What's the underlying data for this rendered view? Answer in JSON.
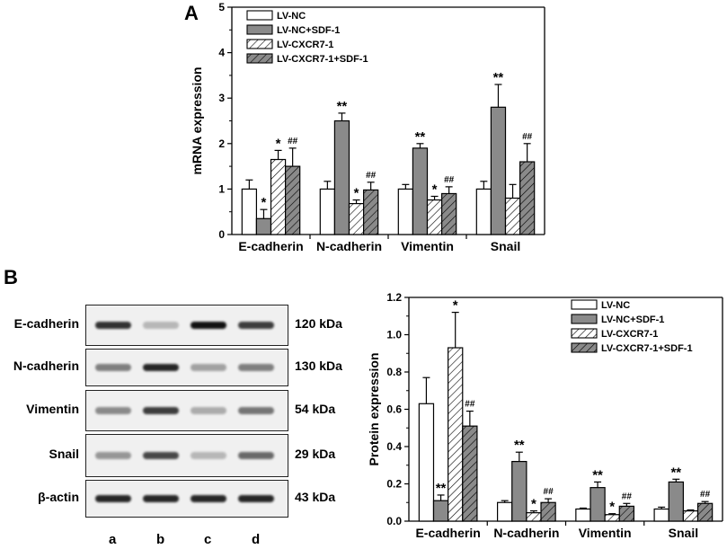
{
  "panel_a": {
    "letter": "A"
  },
  "panel_b": {
    "letter": "B"
  },
  "colors": {
    "white": "#ffffff",
    "gray": "#8a8a8a",
    "stroke": "#000000"
  },
  "chart_data": [
    {
      "type": "bar",
      "ylabel": "mRNA expression",
      "xlabel": "",
      "ylim": [
        0,
        5
      ],
      "yticks": [
        0,
        1,
        2,
        3,
        4,
        5
      ],
      "legend_position": "top-left",
      "categories": [
        "E-cadherin",
        "N-cadherin",
        "Vimentin",
        "Snail"
      ],
      "series": [
        {
          "name": "LV-NC",
          "fill": "white",
          "values": [
            1.0,
            1.0,
            1.0,
            1.0
          ],
          "errors": [
            0.2,
            0.17,
            0.1,
            0.17
          ],
          "annotations": [
            "",
            "",
            "",
            ""
          ]
        },
        {
          "name": "LV-NC+SDF-1",
          "fill": "gray",
          "values": [
            0.35,
            2.5,
            1.9,
            2.8
          ],
          "errors": [
            0.2,
            0.17,
            0.1,
            0.5
          ],
          "annotations": [
            "*",
            "**",
            "**",
            "**"
          ]
        },
        {
          "name": "LV-CXCR7-1",
          "fill": "hatch-white",
          "values": [
            1.65,
            0.68,
            0.76,
            0.8
          ],
          "errors": [
            0.2,
            0.08,
            0.08,
            0.3
          ],
          "annotations": [
            "*",
            "*",
            "*",
            ""
          ]
        },
        {
          "name": "LV-CXCR7-1+SDF-1",
          "fill": "hatch-gray",
          "values": [
            1.5,
            0.98,
            0.9,
            1.6
          ],
          "errors": [
            0.4,
            0.17,
            0.15,
            0.4
          ],
          "annotations": [
            "##",
            "##",
            "##",
            "##"
          ]
        }
      ]
    },
    {
      "type": "bar",
      "ylabel": "Protein expression",
      "xlabel": "",
      "ylim": [
        0,
        1.2
      ],
      "yticks": [
        0.0,
        0.2,
        0.4,
        0.6,
        0.8,
        1.0,
        1.2
      ],
      "legend_position": "top-right",
      "categories": [
        "E-cadherin",
        "N-cadherin",
        "Vimentin",
        "Snail"
      ],
      "series": [
        {
          "name": "LV-NC",
          "fill": "white",
          "values": [
            0.63,
            0.1,
            0.065,
            0.065
          ],
          "errors": [
            0.14,
            0.01,
            0.005,
            0.01
          ],
          "annotations": [
            "",
            "",
            "",
            ""
          ]
        },
        {
          "name": "LV-NC+SDF-1",
          "fill": "gray",
          "values": [
            0.11,
            0.32,
            0.18,
            0.21
          ],
          "errors": [
            0.03,
            0.05,
            0.03,
            0.015
          ],
          "annotations": [
            "**",
            "**",
            "**",
            "**"
          ]
        },
        {
          "name": "LV-CXCR7-1",
          "fill": "hatch-white",
          "values": [
            0.93,
            0.045,
            0.035,
            0.055
          ],
          "errors": [
            0.19,
            0.01,
            0.005,
            0.005
          ],
          "annotations": [
            "*",
            "*",
            "*",
            ""
          ]
        },
        {
          "name": "LV-CXCR7-1+SDF-1",
          "fill": "hatch-gray",
          "values": [
            0.51,
            0.1,
            0.08,
            0.095
          ],
          "errors": [
            0.08,
            0.02,
            0.015,
            0.01
          ],
          "annotations": [
            "##",
            "##",
            "##",
            "##"
          ]
        }
      ]
    }
  ],
  "western_blot": {
    "rows": [
      {
        "label": "E-cadherin",
        "kda": "120 kDa",
        "bands": [
          0.85,
          0.25,
          1.0,
          0.8
        ]
      },
      {
        "label": "N-cadherin",
        "kda": "130 kDa",
        "bands": [
          0.5,
          0.9,
          0.35,
          0.5
        ]
      },
      {
        "label": "Vimentin",
        "kda": "54 kDa",
        "bands": [
          0.45,
          0.8,
          0.3,
          0.55
        ]
      },
      {
        "label": "Snail",
        "kda": "29 kDa",
        "bands": [
          0.4,
          0.75,
          0.25,
          0.6
        ]
      },
      {
        "label": "β-actin",
        "kda": "43 kDa",
        "bands": [
          0.9,
          0.9,
          0.9,
          0.9
        ]
      }
    ],
    "lanes": [
      "a",
      "b",
      "c",
      "d"
    ]
  }
}
